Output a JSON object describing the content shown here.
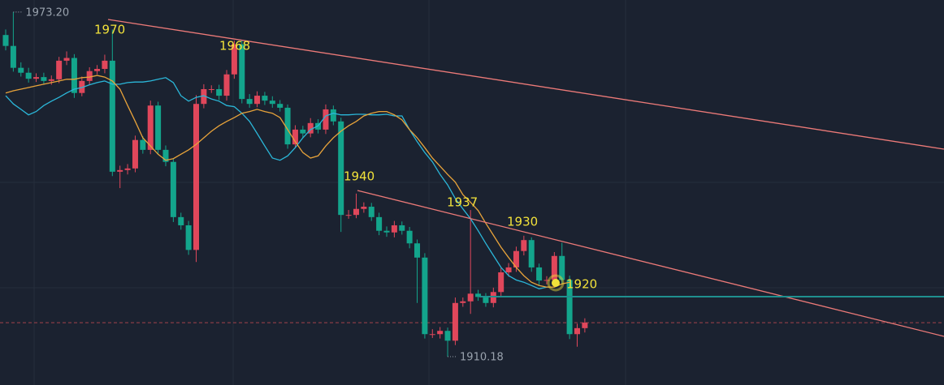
{
  "chart_data": {
    "type": "candlestick",
    "open": [
      1969.0,
      1967.0,
      1963.0,
      1962.1,
      1961.0,
      1961.3,
      1960.6,
      1960.9,
      1964.3,
      1964.8,
      1958.4,
      1960.6,
      1962.4,
      1962.8,
      1964.3,
      1944.0,
      1944.3,
      1944.6,
      1949.8,
      1948.0,
      1956.1,
      1948.0,
      1945.8,
      1935.7,
      1934.2,
      1929.7,
      1956.4,
      1959.1,
      1959.1,
      1957.9,
      1961.8,
      1967.3,
      1957.3,
      1956.4,
      1957.9,
      1957.0,
      1956.4,
      1955.7,
      1949.0,
      1951.7,
      1951.0,
      1952.9,
      1951.7,
      1955.4,
      1953.2,
      1936.1,
      1936.1,
      1937.2,
      1937.6,
      1935.7,
      1933.2,
      1932.9,
      1934.2,
      1933.2,
      1930.9,
      1928.3,
      1914.3,
      1914.3,
      1914.9,
      1913.1,
      1920.0,
      1920.3,
      1921.7,
      1921.1,
      1920.0,
      1922.0,
      1925.6,
      1926.5,
      1929.5,
      1931.5,
      1926.5,
      1924.1,
      1924.2,
      1928.6,
      1924.2,
      1914.3,
      1915.4
    ],
    "high": [
      1970.0,
      1973.2,
      1964.0,
      1963.0,
      1962.0,
      1962.1,
      1961.6,
      1965.0,
      1966.0,
      1965.5,
      1961.4,
      1963.1,
      1963.5,
      1965.4,
      1970.0,
      1945.1,
      1945.4,
      1950.6,
      1950.5,
      1957.0,
      1956.8,
      1948.8,
      1946.4,
      1936.5,
      1935.0,
      1958.0,
      1960.0,
      1959.8,
      1959.9,
      1962.6,
      1968.0,
      1968.0,
      1958.2,
      1958.7,
      1958.6,
      1957.8,
      1957.1,
      1956.3,
      1952.5,
      1952.4,
      1953.8,
      1953.6,
      1956.3,
      1956.1,
      1953.9,
      1937.0,
      1940.0,
      1938.4,
      1938.3,
      1936.5,
      1934.0,
      1935.0,
      1934.9,
      1933.9,
      1931.6,
      1929.1,
      1915.2,
      1915.6,
      1915.5,
      1921.0,
      1921.0,
      1937.0,
      1922.4,
      1921.8,
      1922.8,
      1926.4,
      1927.3,
      1930.3,
      1932.3,
      1932.0,
      1927.2,
      1924.9,
      1929.3,
      1931.0,
      1925.0,
      1916.2,
      1917.2
    ],
    "low": [
      1966.2,
      1962.3,
      1961.4,
      1960.3,
      1960.4,
      1960.0,
      1959.9,
      1960.2,
      1963.5,
      1957.5,
      1957.8,
      1959.9,
      1961.8,
      1962.0,
      1943.2,
      1941.0,
      1943.5,
      1943.9,
      1947.3,
      1947.2,
      1947.3,
      1945.0,
      1934.8,
      1933.4,
      1928.8,
      1927.5,
      1955.6,
      1958.4,
      1957.1,
      1957.0,
      1961.0,
      1956.5,
      1955.7,
      1955.8,
      1956.2,
      1955.7,
      1955.0,
      1948.2,
      1948.3,
      1950.2,
      1950.3,
      1951.0,
      1950.9,
      1952.5,
      1933.0,
      1935.4,
      1935.5,
      1936.5,
      1935.0,
      1932.4,
      1932.1,
      1932.0,
      1932.5,
      1930.0,
      1920.0,
      1913.5,
      1913.6,
      1913.5,
      1910.18,
      1912.3,
      1919.3,
      1918.0,
      1920.4,
      1919.3,
      1919.2,
      1921.2,
      1924.8,
      1925.7,
      1928.7,
      1925.7,
      1923.3,
      1923.4,
      1923.5,
      1923.4,
      1913.4,
      1912.0,
      1914.6
    ],
    "close": [
      1967.0,
      1963.0,
      1962.1,
      1961.0,
      1961.3,
      1960.6,
      1960.9,
      1964.3,
      1964.8,
      1958.4,
      1960.6,
      1962.4,
      1962.8,
      1964.3,
      1944.0,
      1944.3,
      1944.6,
      1949.8,
      1948.0,
      1956.1,
      1948.0,
      1945.8,
      1935.7,
      1934.2,
      1929.7,
      1956.4,
      1959.1,
      1959.1,
      1957.9,
      1961.8,
      1967.3,
      1957.3,
      1956.4,
      1957.9,
      1957.0,
      1956.4,
      1955.7,
      1949.0,
      1951.7,
      1951.0,
      1952.9,
      1951.7,
      1955.4,
      1953.2,
      1936.1,
      1936.1,
      1937.2,
      1937.6,
      1935.7,
      1933.2,
      1932.9,
      1934.2,
      1933.2,
      1930.9,
      1928.3,
      1914.3,
      1914.3,
      1914.9,
      1913.1,
      1920.0,
      1920.3,
      1921.7,
      1921.1,
      1920.0,
      1922.0,
      1925.6,
      1926.5,
      1929.5,
      1931.5,
      1926.5,
      1924.1,
      1924.2,
      1928.6,
      1924.2,
      1914.3,
      1915.4,
      1916.4
    ],
    "up_color": "#e0475b",
    "down_color": "#13a58c",
    "lines": [
      {
        "color": "#2bb7d9",
        "values": [
          1957.9,
          1956.4,
          1955.4,
          1954.4,
          1955.0,
          1956.1,
          1956.9,
          1957.6,
          1958.4,
          1959.1,
          1959.4,
          1959.9,
          1960.3,
          1960.6,
          1960.0,
          1960.0,
          1960.3,
          1960.4,
          1960.4,
          1960.6,
          1960.9,
          1961.2,
          1960.3,
          1957.9,
          1956.9,
          1957.6,
          1957.9,
          1957.3,
          1956.9,
          1956.1,
          1955.9,
          1954.7,
          1953.2,
          1951.0,
          1948.7,
          1946.5,
          1946.1,
          1946.9,
          1948.4,
          1950.2,
          1951.7,
          1952.4,
          1954.2,
          1954.7,
          1954.4,
          1954.4,
          1954.5,
          1954.5,
          1954.4,
          1954.4,
          1954.5,
          1954.2,
          1954.2,
          1951.7,
          1949.5,
          1947.5,
          1945.8,
          1943.5,
          1941.6,
          1939.1,
          1937.2,
          1935.4,
          1933.2,
          1930.9,
          1928.7,
          1926.5,
          1925.0,
          1924.2,
          1923.8,
          1923.2,
          1922.6,
          1922.9,
          null,
          null,
          null,
          null,
          null
        ]
      },
      {
        "color": "#e8a33a",
        "values": [
          1958.4,
          1958.8,
          1959.1,
          1959.4,
          1959.7,
          1960.0,
          1960.3,
          1960.6,
          1960.9,
          1960.9,
          1961.2,
          1961.3,
          1961.6,
          1961.3,
          1960.6,
          1959.1,
          1956.1,
          1953.2,
          1950.2,
          1948.7,
          1947.2,
          1946.1,
          1946.4,
          1947.2,
          1948.0,
          1949.0,
          1950.2,
          1951.4,
          1952.4,
          1953.2,
          1953.9,
          1954.7,
          1955.0,
          1955.4,
          1955.0,
          1954.7,
          1953.9,
          1951.7,
          1949.5,
          1947.5,
          1946.5,
          1946.9,
          1948.7,
          1950.2,
          1951.4,
          1952.4,
          1953.2,
          1954.2,
          1954.7,
          1955.0,
          1955.0,
          1954.4,
          1953.5,
          1951.7,
          1950.2,
          1948.4,
          1946.5,
          1945.0,
          1943.5,
          1942.1,
          1939.8,
          1938.4,
          1936.9,
          1934.6,
          1932.4,
          1930.2,
          1928.3,
          1926.5,
          1925.0,
          1923.8,
          1923.2,
          1922.9,
          1922.9,
          1923.5,
          1923.8,
          null,
          null
        ]
      }
    ],
    "annotations": [
      1970,
      1968,
      1940,
      1937,
      1930,
      1920
    ],
    "max_label": {
      "value": 1973.2,
      "label": "1973.20"
    },
    "min_label": {
      "value": 1910.18,
      "label": "1910.18"
    },
    "ylim": [
      1905.0,
      1975.4
    ],
    "last_price_line": true
  }
}
